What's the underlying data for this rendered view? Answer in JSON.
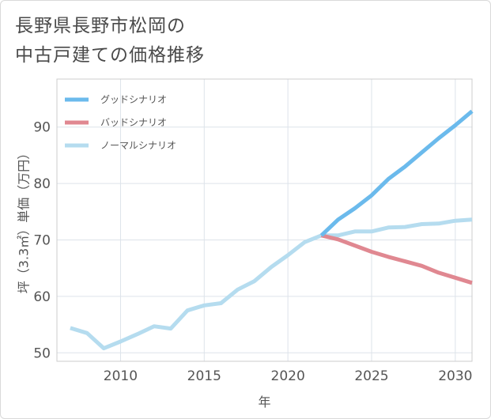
{
  "title": {
    "line1": "長野県長野市松岡の",
    "line2": "中古戸建ての価格推移"
  },
  "chart_data": {
    "type": "line",
    "xlabel": "年",
    "ylabel": "坪（3.3㎡）単価（万円）",
    "xlim": [
      2006.2,
      2031
    ],
    "ylim": [
      48.5,
      98.5
    ],
    "xticks": [
      2010,
      2015,
      2020,
      2025,
      2030
    ],
    "yticks": [
      50,
      60,
      70,
      80,
      90
    ],
    "grid": true,
    "legend_position": "top-left",
    "series": [
      {
        "name": "グッドシナリオ",
        "color": "#6bbaec",
        "x": [
          2022,
          2023,
          2024,
          2025,
          2026,
          2027,
          2028,
          2029,
          2030,
          2031
        ],
        "y": [
          70.8,
          73.6,
          75.6,
          77.9,
          80.8,
          83.0,
          85.5,
          88.0,
          90.3,
          92.8
        ]
      },
      {
        "name": "バッドシナリオ",
        "color": "#e08891",
        "x": [
          2022,
          2023,
          2024,
          2025,
          2026,
          2027,
          2028,
          2029,
          2030,
          2031
        ],
        "y": [
          70.8,
          70.1,
          69.0,
          67.9,
          67.0,
          66.2,
          65.4,
          64.2,
          63.3,
          62.4
        ]
      },
      {
        "name": "ノーマルシナリオ",
        "color": "#b5dcef",
        "x": [
          2007,
          2008,
          2009,
          2010,
          2011,
          2012,
          2013,
          2014,
          2015,
          2016,
          2017,
          2018,
          2019,
          2020,
          2021,
          2022,
          2023,
          2024,
          2025,
          2026,
          2027,
          2028,
          2029,
          2030,
          2031
        ],
        "y": [
          54.4,
          53.5,
          50.8,
          52.0,
          53.3,
          54.7,
          54.3,
          57.5,
          58.4,
          58.8,
          61.2,
          62.7,
          65.2,
          67.3,
          69.6,
          70.8,
          70.8,
          71.5,
          71.5,
          72.2,
          72.3,
          72.8,
          72.9,
          73.4,
          73.6
        ]
      }
    ]
  }
}
